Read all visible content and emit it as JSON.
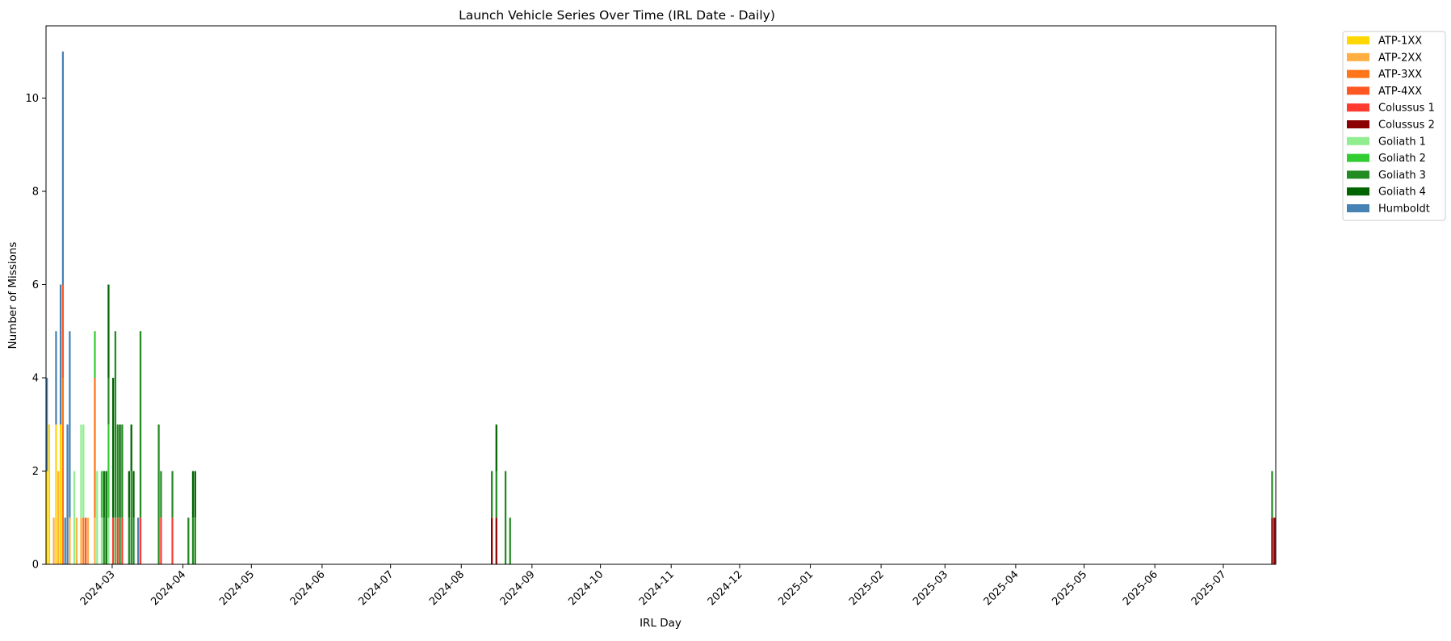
{
  "chart_data": {
    "type": "bar",
    "stacked": true,
    "title": "Launch Vehicle Series Over Time (IRL Date - Daily)",
    "xlabel": "IRL Day",
    "ylabel": "Number of Missions",
    "x_range": [
      "2024-02-01",
      "2025-07-23"
    ],
    "ylim": [
      0,
      11.55
    ],
    "y_ticks": [
      0,
      2,
      4,
      6,
      8,
      10
    ],
    "x_ticks": [
      "2024-03",
      "2024-04",
      "2024-05",
      "2024-06",
      "2024-07",
      "2024-08",
      "2024-09",
      "2024-10",
      "2024-11",
      "2024-12",
      "2025-01",
      "2025-02",
      "2025-03",
      "2025-04",
      "2025-05",
      "2025-06",
      "2025-07"
    ],
    "grid": false,
    "legend_position": "outside-right-top",
    "series": [
      {
        "name": "ATP-1XX",
        "color": "#FFD700",
        "points": [
          [
            "2024-02-01",
            2
          ],
          [
            "2024-02-02",
            3
          ],
          [
            "2024-02-05",
            3
          ],
          [
            "2024-02-07",
            3
          ]
        ]
      },
      {
        "name": "ATP-2XX",
        "color": "#FFAE42",
        "points": [
          [
            "2024-02-04",
            1
          ],
          [
            "2024-02-06",
            2
          ],
          [
            "2024-02-11",
            1
          ],
          [
            "2024-02-14",
            1
          ],
          [
            "2024-02-16",
            1
          ],
          [
            "2024-02-19",
            1
          ],
          [
            "2024-02-22",
            1
          ]
        ]
      },
      {
        "name": "ATP-3XX",
        "color": "#FF7518",
        "points": [
          [
            "2024-02-08",
            4
          ],
          [
            "2024-02-17",
            1
          ],
          [
            "2024-02-22",
            3
          ]
        ]
      },
      {
        "name": "ATP-4XX",
        "color": "#FF5722",
        "points": [
          [
            "2024-02-08",
            2
          ],
          [
            "2024-02-18",
            1
          ]
        ]
      },
      {
        "name": "Colussus 1",
        "color": "#FF3B30",
        "points": [
          [
            "2024-03-01",
            1
          ],
          [
            "2024-03-03",
            1
          ],
          [
            "2024-03-05",
            1
          ],
          [
            "2024-03-13",
            1
          ],
          [
            "2024-03-22",
            1
          ],
          [
            "2024-03-27",
            1
          ]
        ]
      },
      {
        "name": "Colussus 2",
        "color": "#8B0000",
        "points": [
          [
            "2024-08-14",
            1
          ],
          [
            "2024-08-16",
            1
          ],
          [
            "2025-07-22",
            1
          ],
          [
            "2025-07-23",
            1
          ]
        ]
      },
      {
        "name": "Goliath 1",
        "color": "#90EE90",
        "points": [
          [
            "2024-02-13",
            2
          ],
          [
            "2024-02-16",
            2
          ],
          [
            "2024-02-17",
            2
          ],
          [
            "2024-02-23",
            2
          ],
          [
            "2024-02-25",
            1
          ],
          [
            "2024-02-28",
            1
          ]
        ]
      },
      {
        "name": "Goliath 2",
        "color": "#32CD32",
        "points": [
          [
            "2024-02-22",
            1
          ],
          [
            "2024-02-25",
            1
          ],
          [
            "2024-02-28",
            2
          ],
          [
            "2024-03-02",
            1
          ]
        ]
      },
      {
        "name": "Goliath 3",
        "color": "#228B22",
        "points": [
          [
            "2024-02-26",
            1
          ],
          [
            "2024-02-28",
            1
          ],
          [
            "2024-03-02",
            4
          ],
          [
            "2024-03-03",
            2
          ],
          [
            "2024-03-04",
            1
          ],
          [
            "2024-03-05",
            2
          ],
          [
            "2024-03-08",
            1
          ],
          [
            "2024-03-09",
            2
          ],
          [
            "2024-03-10",
            1
          ],
          [
            "2024-03-13",
            4
          ],
          [
            "2024-03-21",
            3
          ],
          [
            "2024-03-22",
            1
          ],
          [
            "2024-03-27",
            1
          ],
          [
            "2024-04-03",
            1
          ],
          [
            "2024-04-05",
            1
          ],
          [
            "2024-04-06",
            1
          ],
          [
            "2024-08-14",
            1
          ],
          [
            "2024-08-16",
            1
          ],
          [
            "2024-08-20",
            2
          ],
          [
            "2024-08-22",
            1
          ],
          [
            "2025-07-22",
            1
          ]
        ]
      },
      {
        "name": "Goliath 4",
        "color": "#006400",
        "points": [
          [
            "2024-02-26",
            1
          ],
          [
            "2024-02-27",
            2
          ],
          [
            "2024-02-28",
            2
          ],
          [
            "2024-03-01",
            3
          ],
          [
            "2024-03-04",
            2
          ],
          [
            "2024-03-08",
            1
          ],
          [
            "2024-03-09",
            1
          ],
          [
            "2024-03-10",
            1
          ],
          [
            "2024-04-05",
            1
          ],
          [
            "2024-04-06",
            1
          ],
          [
            "2024-08-16",
            1
          ]
        ]
      },
      {
        "name": "Humboldt",
        "color": "#4682B4",
        "points": [
          [
            "2024-02-01",
            2
          ],
          [
            "2024-02-05",
            2
          ],
          [
            "2024-02-07",
            3
          ],
          [
            "2024-02-08",
            5
          ],
          [
            "2024-02-09",
            1
          ],
          [
            "2024-02-10",
            3
          ],
          [
            "2024-02-11",
            4
          ],
          [
            "2024-03-12",
            1
          ]
        ]
      }
    ]
  }
}
